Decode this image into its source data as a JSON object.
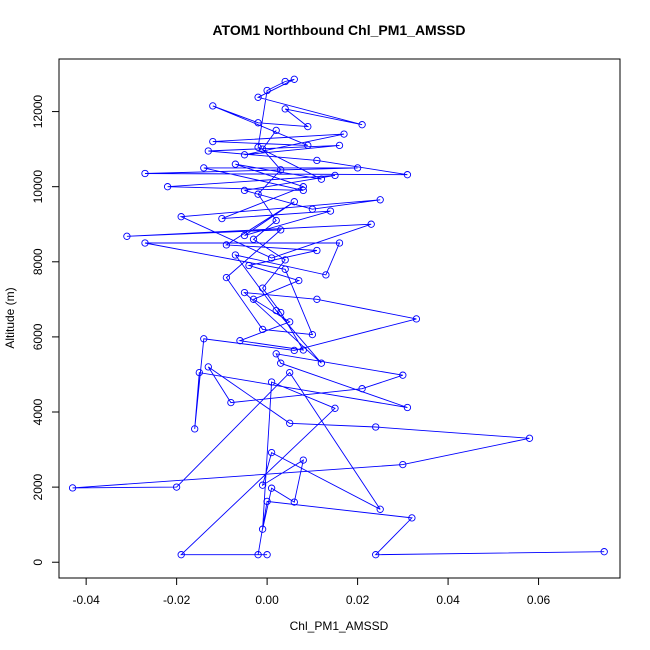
{
  "chart_data": {
    "type": "line",
    "title": "ATOM1 Northbound Chl_PM1_AMSSD",
    "xlabel": "Chl_PM1_AMSSD",
    "ylabel": "Altitude (m)",
    "xlim": [
      -0.046,
      0.078
    ],
    "ylim": [
      -420,
      13400
    ],
    "x_ticks": [
      -0.04,
      -0.02,
      0.0,
      0.02,
      0.04,
      0.06
    ],
    "x_tick_labels": [
      "-0.04",
      "-0.02",
      "0.00",
      "0.02",
      "0.04",
      "0.06"
    ],
    "y_ticks": [
      0,
      2000,
      4000,
      6000,
      8000,
      10000,
      12000
    ],
    "y_tick_labels": [
      "0",
      "2000",
      "4000",
      "6000",
      "8000",
      "10000",
      "12000"
    ],
    "grid": false,
    "series": [
      {
        "color": "#0000ff",
        "points": [
          [
            0.0745,
            280
          ],
          [
            0.024,
            200
          ],
          [
            0.032,
            1180
          ],
          [
            0.0,
            1620
          ],
          [
            -0.002,
            200
          ],
          [
            0.0,
            200
          ],
          [
            -0.019,
            200
          ],
          [
            0.015,
            4100
          ],
          [
            0.001,
            4800
          ],
          [
            -0.001,
            880
          ],
          [
            0.001,
            1970
          ],
          [
            0.006,
            1600
          ],
          [
            0.008,
            2720
          ],
          [
            -0.001,
            2050
          ],
          [
            0.001,
            2920
          ],
          [
            0.025,
            1410
          ],
          [
            0.005,
            5050
          ],
          [
            -0.02,
            2000
          ],
          [
            -0.043,
            1980
          ],
          [
            0.03,
            2600
          ],
          [
            0.058,
            3300
          ],
          [
            0.024,
            3600
          ],
          [
            0.005,
            3700
          ],
          [
            -0.013,
            5200
          ],
          [
            -0.008,
            4250
          ],
          [
            0.021,
            4620
          ],
          [
            0.03,
            4980
          ],
          [
            0.002,
            5550
          ],
          [
            0.003,
            5300
          ],
          [
            0.031,
            4120
          ],
          [
            -0.015,
            5050
          ],
          [
            -0.016,
            3550
          ],
          [
            -0.014,
            5950
          ],
          [
            0.006,
            5640
          ],
          [
            0.033,
            6480
          ],
          [
            0.011,
            7000
          ],
          [
            -0.005,
            7180
          ],
          [
            0.012,
            5300
          ],
          [
            0.002,
            6700
          ],
          [
            -0.007,
            8180
          ],
          [
            0.013,
            7650
          ],
          [
            0.016,
            8500
          ],
          [
            -0.027,
            8500
          ],
          [
            0.004,
            7800
          ],
          [
            0.01,
            6060
          ],
          [
            -0.001,
            6200
          ],
          [
            -0.009,
            7580
          ],
          [
            0.003,
            8850
          ],
          [
            -0.031,
            8680
          ],
          [
            0.023,
            9000
          ],
          [
            0.001,
            8100
          ],
          [
            -0.019,
            9200
          ],
          [
            0.025,
            9650
          ],
          [
            0.01,
            9400
          ],
          [
            -0.005,
            9900
          ],
          [
            0.015,
            10300
          ],
          [
            -0.022,
            10000
          ],
          [
            0.008,
            9900
          ],
          [
            -0.014,
            10500
          ],
          [
            0.02,
            10500
          ],
          [
            -0.027,
            10350
          ],
          [
            0.031,
            10320
          ],
          [
            0.011,
            10700
          ],
          [
            -0.013,
            10950
          ],
          [
            0.016,
            11100
          ],
          [
            -0.005,
            10850
          ],
          [
            0.017,
            11400
          ],
          [
            -0.012,
            11200
          ],
          [
            0.009,
            11100
          ],
          [
            -0.012,
            12150
          ],
          [
            -0.002,
            11700
          ],
          [
            0.009,
            11600
          ],
          [
            0.004,
            12070
          ],
          [
            0.021,
            11650
          ],
          [
            -0.002,
            12380
          ],
          [
            0.006,
            12860
          ],
          [
            0.004,
            12800
          ],
          [
            0.0,
            12560
          ],
          [
            -0.002,
            11050
          ],
          [
            0.012,
            10200
          ],
          [
            -0.007,
            10600
          ],
          [
            0.008,
            10000
          ],
          [
            -0.01,
            9150
          ],
          [
            0.014,
            9350
          ],
          [
            -0.005,
            8700
          ],
          [
            0.006,
            9600
          ],
          [
            -0.009,
            8450
          ],
          [
            0.011,
            8300
          ],
          [
            -0.004,
            7900
          ],
          [
            0.007,
            7500
          ],
          [
            -0.003,
            7000
          ],
          [
            0.005,
            6400
          ],
          [
            -0.006,
            5900
          ],
          [
            0.008,
            5650
          ],
          [
            0.003,
            6650
          ],
          [
            -0.001,
            7300
          ],
          [
            0.004,
            8050
          ],
          [
            -0.003,
            8600
          ],
          [
            0.002,
            9100
          ],
          [
            -0.002,
            9800
          ],
          [
            0.003,
            10450
          ],
          [
            -0.001,
            11000
          ],
          [
            0.002,
            11500
          ]
        ]
      }
    ]
  }
}
